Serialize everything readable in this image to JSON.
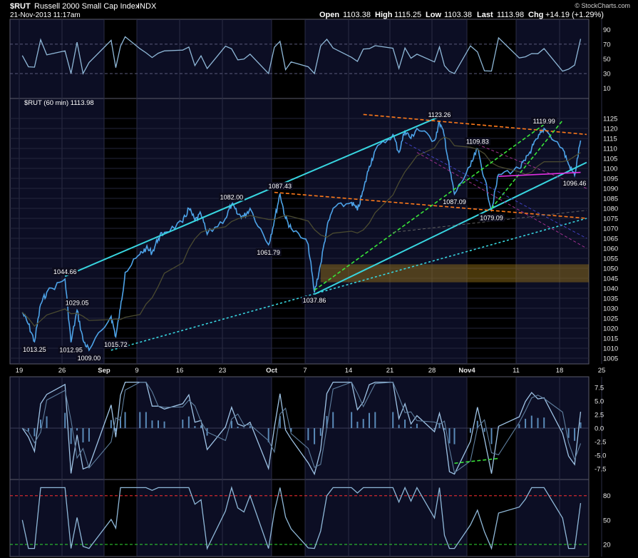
{
  "header": {
    "symbol": "$RUT",
    "name": "Russell 2000 Small Cap Index",
    "exchange": "INDX",
    "datetime": "21-Nov-2013 11:17am",
    "open_label": "Open",
    "open": "1103.38",
    "high_label": "High",
    "high": "1115.25",
    "low_label": "Low",
    "low": "1103.38",
    "last_label": "Last",
    "last": "1113.98",
    "chg_label": "Chg",
    "chg": "+14.19 (+1.29%)",
    "watermark": "© StockCharts.com"
  },
  "chart_data": {
    "type": "line",
    "price_legend": "$RUT (60 min) 1113.98",
    "colors": {
      "background": "#000000",
      "panel": "#0c0e24",
      "price": "#4da3e8",
      "channel": "#38d6e0",
      "orange": "#ff7a1a",
      "green": "#39e639",
      "magenta": "#e030e0",
      "zone": "#a07a18",
      "red_level": "#ff3030",
      "green_level": "#30e030"
    },
    "x_tick_labels": [
      "19",
      "26",
      "Sep",
      "9",
      "16",
      "23",
      "Oct",
      "7",
      "14",
      "21",
      "28",
      "Nov4",
      "11",
      "18",
      "25"
    ],
    "price_axis": {
      "ylim": [
        1005,
        1130
      ],
      "ticks": [
        1005,
        1010,
        1015,
        1020,
        1025,
        1030,
        1035,
        1040,
        1045,
        1050,
        1055,
        1060,
        1065,
        1070,
        1075,
        1080,
        1085,
        1090,
        1095,
        1100,
        1105,
        1110,
        1115,
        1120,
        1125
      ]
    },
    "price_series": [
      {
        "t": "Aug 19",
        "v": 1028
      },
      {
        "t": "Aug 20",
        "v": 1022
      },
      {
        "t": "Aug 21",
        "v": 1013.25
      },
      {
        "t": "Aug 22",
        "v": 1032
      },
      {
        "t": "Aug 23",
        "v": 1038
      },
      {
        "t": "Aug 26",
        "v": 1044.66
      },
      {
        "t": "Aug 27",
        "v": 1012.95
      },
      {
        "t": "Aug 28",
        "v": 1029.05
      },
      {
        "t": "Aug 29",
        "v": 1014
      },
      {
        "t": "Aug 30",
        "v": 1009.0
      },
      {
        "t": "Sep 3",
        "v": 1026
      },
      {
        "t": "Sep 4",
        "v": 1015.72
      },
      {
        "t": "Sep 5",
        "v": 1030
      },
      {
        "t": "Sep 6",
        "v": 1048
      },
      {
        "t": "Sep 9",
        "v": 1057
      },
      {
        "t": "Sep 10",
        "v": 1060
      },
      {
        "t": "Sep 11",
        "v": 1058
      },
      {
        "t": "Sep 12",
        "v": 1065
      },
      {
        "t": "Sep 13",
        "v": 1068
      },
      {
        "t": "Sep 16",
        "v": 1073
      },
      {
        "t": "Sep 17",
        "v": 1080
      },
      {
        "t": "Sep 18",
        "v": 1074
      },
      {
        "t": "Sep 19",
        "v": 1077
      },
      {
        "t": "Sep 20",
        "v": 1067
      },
      {
        "t": "Sep 23",
        "v": 1075
      },
      {
        "t": "Sep 24",
        "v": 1082.0
      },
      {
        "t": "Sep 25",
        "v": 1077
      },
      {
        "t": "Sep 26",
        "v": 1076
      },
      {
        "t": "Sep 27",
        "v": 1080
      },
      {
        "t": "Sep 30",
        "v": 1061.79
      },
      {
        "t": "Oct 1",
        "v": 1074
      },
      {
        "t": "Oct 2",
        "v": 1087.43
      },
      {
        "t": "Oct 3",
        "v": 1075
      },
      {
        "t": "Oct 4",
        "v": 1070
      },
      {
        "t": "Oct 7",
        "v": 1062
      },
      {
        "t": "Oct 8",
        "v": 1037.86
      },
      {
        "t": "Oct 9",
        "v": 1052
      },
      {
        "t": "Oct 10",
        "v": 1070
      },
      {
        "t": "Oct 11",
        "v": 1080
      },
      {
        "t": "Oct 14",
        "v": 1083
      },
      {
        "t": "Oct 15",
        "v": 1079
      },
      {
        "t": "Oct 16",
        "v": 1089
      },
      {
        "t": "Oct 17",
        "v": 1101
      },
      {
        "t": "Oct 18",
        "v": 1109
      },
      {
        "t": "Oct 21",
        "v": 1117
      },
      {
        "t": "Oct 22",
        "v": 1108
      },
      {
        "t": "Oct 23",
        "v": 1119
      },
      {
        "t": "Oct 24",
        "v": 1115
      },
      {
        "t": "Oct 25",
        "v": 1120
      },
      {
        "t": "Oct 28",
        "v": 1114
      },
      {
        "t": "Oct 29",
        "v": 1123.26
      },
      {
        "t": "Oct 30",
        "v": 1116
      },
      {
        "t": "Oct 31",
        "v": 1100
      },
      {
        "t": "Nov 1",
        "v": 1087.09
      },
      {
        "t": "Nov 4",
        "v": 1101
      },
      {
        "t": "Nov 5",
        "v": 1109.83
      },
      {
        "t": "Nov 6",
        "v": 1095
      },
      {
        "t": "Nov 7",
        "v": 1079.09
      },
      {
        "t": "Nov 8",
        "v": 1097
      },
      {
        "t": "Nov 11",
        "v": 1100
      },
      {
        "t": "Nov 12",
        "v": 1104
      },
      {
        "t": "Nov 13",
        "v": 1110
      },
      {
        "t": "Nov 14",
        "v": 1115
      },
      {
        "t": "Nov 15",
        "v": 1119.99
      },
      {
        "t": "Nov 18",
        "v": 1110
      },
      {
        "t": "Nov 19",
        "v": 1102
      },
      {
        "t": "Nov 20",
        "v": 1096.46
      },
      {
        "t": "Nov 21",
        "v": 1113.98
      }
    ],
    "price_labels": [
      {
        "text": "1013.25",
        "t": "Aug 21",
        "v": 1013.25,
        "pos": "below"
      },
      {
        "text": "1044.66",
        "t": "Aug 26",
        "v": 1044.66,
        "pos": "above"
      },
      {
        "text": "1012.95",
        "t": "Aug 27",
        "v": 1012.95,
        "pos": "below"
      },
      {
        "text": "1029.05",
        "t": "Aug 28",
        "v": 1029.05,
        "pos": "above"
      },
      {
        "text": "1009.00",
        "t": "Aug 30",
        "v": 1009.0,
        "pos": "below"
      },
      {
        "text": "1015.72",
        "t": "Sep 4",
        "v": 1015.72,
        "pos": "below"
      },
      {
        "text": "1082.00",
        "t": "Sep 24",
        "v": 1082.0,
        "pos": "above"
      },
      {
        "text": "1061.79",
        "t": "Sep 30",
        "v": 1061.79,
        "pos": "below"
      },
      {
        "text": "1087.43",
        "t": "Oct 2",
        "v": 1087.43,
        "pos": "above"
      },
      {
        "text": "1037.86",
        "t": "Oct 8",
        "v": 1037.86,
        "pos": "below"
      },
      {
        "text": "1123.26",
        "t": "Oct 29",
        "v": 1123.26,
        "pos": "above"
      },
      {
        "text": "1087.09",
        "t": "Nov 1",
        "v": 1087.09,
        "pos": "below"
      },
      {
        "text": "1109.83",
        "t": "Nov 5",
        "v": 1109.83,
        "pos": "above"
      },
      {
        "text": "1079.09",
        "t": "Nov 7",
        "v": 1079.09,
        "pos": "below"
      },
      {
        "text": "1119.99",
        "t": "Nov 15",
        "v": 1119.99,
        "pos": "above"
      },
      {
        "text": "1096.46",
        "t": "Nov 20",
        "v": 1096.46,
        "pos": "below"
      }
    ],
    "trendlines": [
      {
        "kind": "channel-upper",
        "color": "channel",
        "style": "solid",
        "from": {
          "t": "Aug 26",
          "v": 1046
        },
        "to": {
          "t": "Oct 31",
          "v": 1128
        }
      },
      {
        "kind": "channel-lower",
        "color": "channel",
        "style": "solid",
        "from": {
          "t": "Oct 8",
          "v": 1037
        },
        "to": {
          "t": "Nov 22",
          "v": 1103
        }
      },
      {
        "kind": "support-dashed",
        "color": "channel",
        "style": "dashed",
        "from": {
          "t": "Sep 3",
          "v": 1009
        },
        "to": {
          "t": "Nov 22",
          "v": 1075
        }
      },
      {
        "kind": "resistance-upper",
        "color": "orange",
        "style": "dashed",
        "from": {
          "t": "Oct 16",
          "v": 1127
        },
        "to": {
          "t": "Nov 22",
          "v": 1117
        }
      },
      {
        "kind": "resistance-lower",
        "color": "orange",
        "style": "dashed",
        "from": {
          "t": "Oct 1",
          "v": 1088
        },
        "to": {
          "t": "Nov 22",
          "v": 1075
        }
      },
      {
        "kind": "green-fan-1",
        "color": "green",
        "style": "dashed",
        "from": {
          "t": "Oct 8",
          "v": 1039
        },
        "to": {
          "t": "Nov 15",
          "v": 1122
        }
      },
      {
        "kind": "green-fan-2",
        "color": "green",
        "style": "dashed",
        "from": {
          "t": "Nov 7",
          "v": 1080
        },
        "to": {
          "t": "Nov 18",
          "v": 1124
        }
      },
      {
        "kind": "magenta-support",
        "color": "magenta",
        "style": "solid",
        "from": {
          "t": "Nov 8",
          "v": 1096
        },
        "to": {
          "t": "Nov 21",
          "v": 1098
        }
      }
    ],
    "zone": {
      "from": {
        "t": "Oct 9"
      },
      "to": {
        "t": "Nov 22"
      },
      "ylim": [
        1043,
        1052
      ]
    },
    "rsi_panel": {
      "ticks": [
        10,
        30,
        50,
        70,
        90
      ],
      "ylim": [
        0,
        100
      ],
      "levels": [
        30,
        70
      ]
    },
    "macd_panel": {
      "ticks": [
        -7.5,
        -5.0,
        -2.5,
        0.0,
        2.5,
        5.0,
        7.5
      ],
      "ylim": [
        -9.5,
        9.5
      ]
    },
    "stoch_panel": {
      "ticks": [
        20,
        50,
        80
      ],
      "ylim": [
        5,
        100
      ],
      "levels": [
        20,
        80
      ]
    }
  }
}
